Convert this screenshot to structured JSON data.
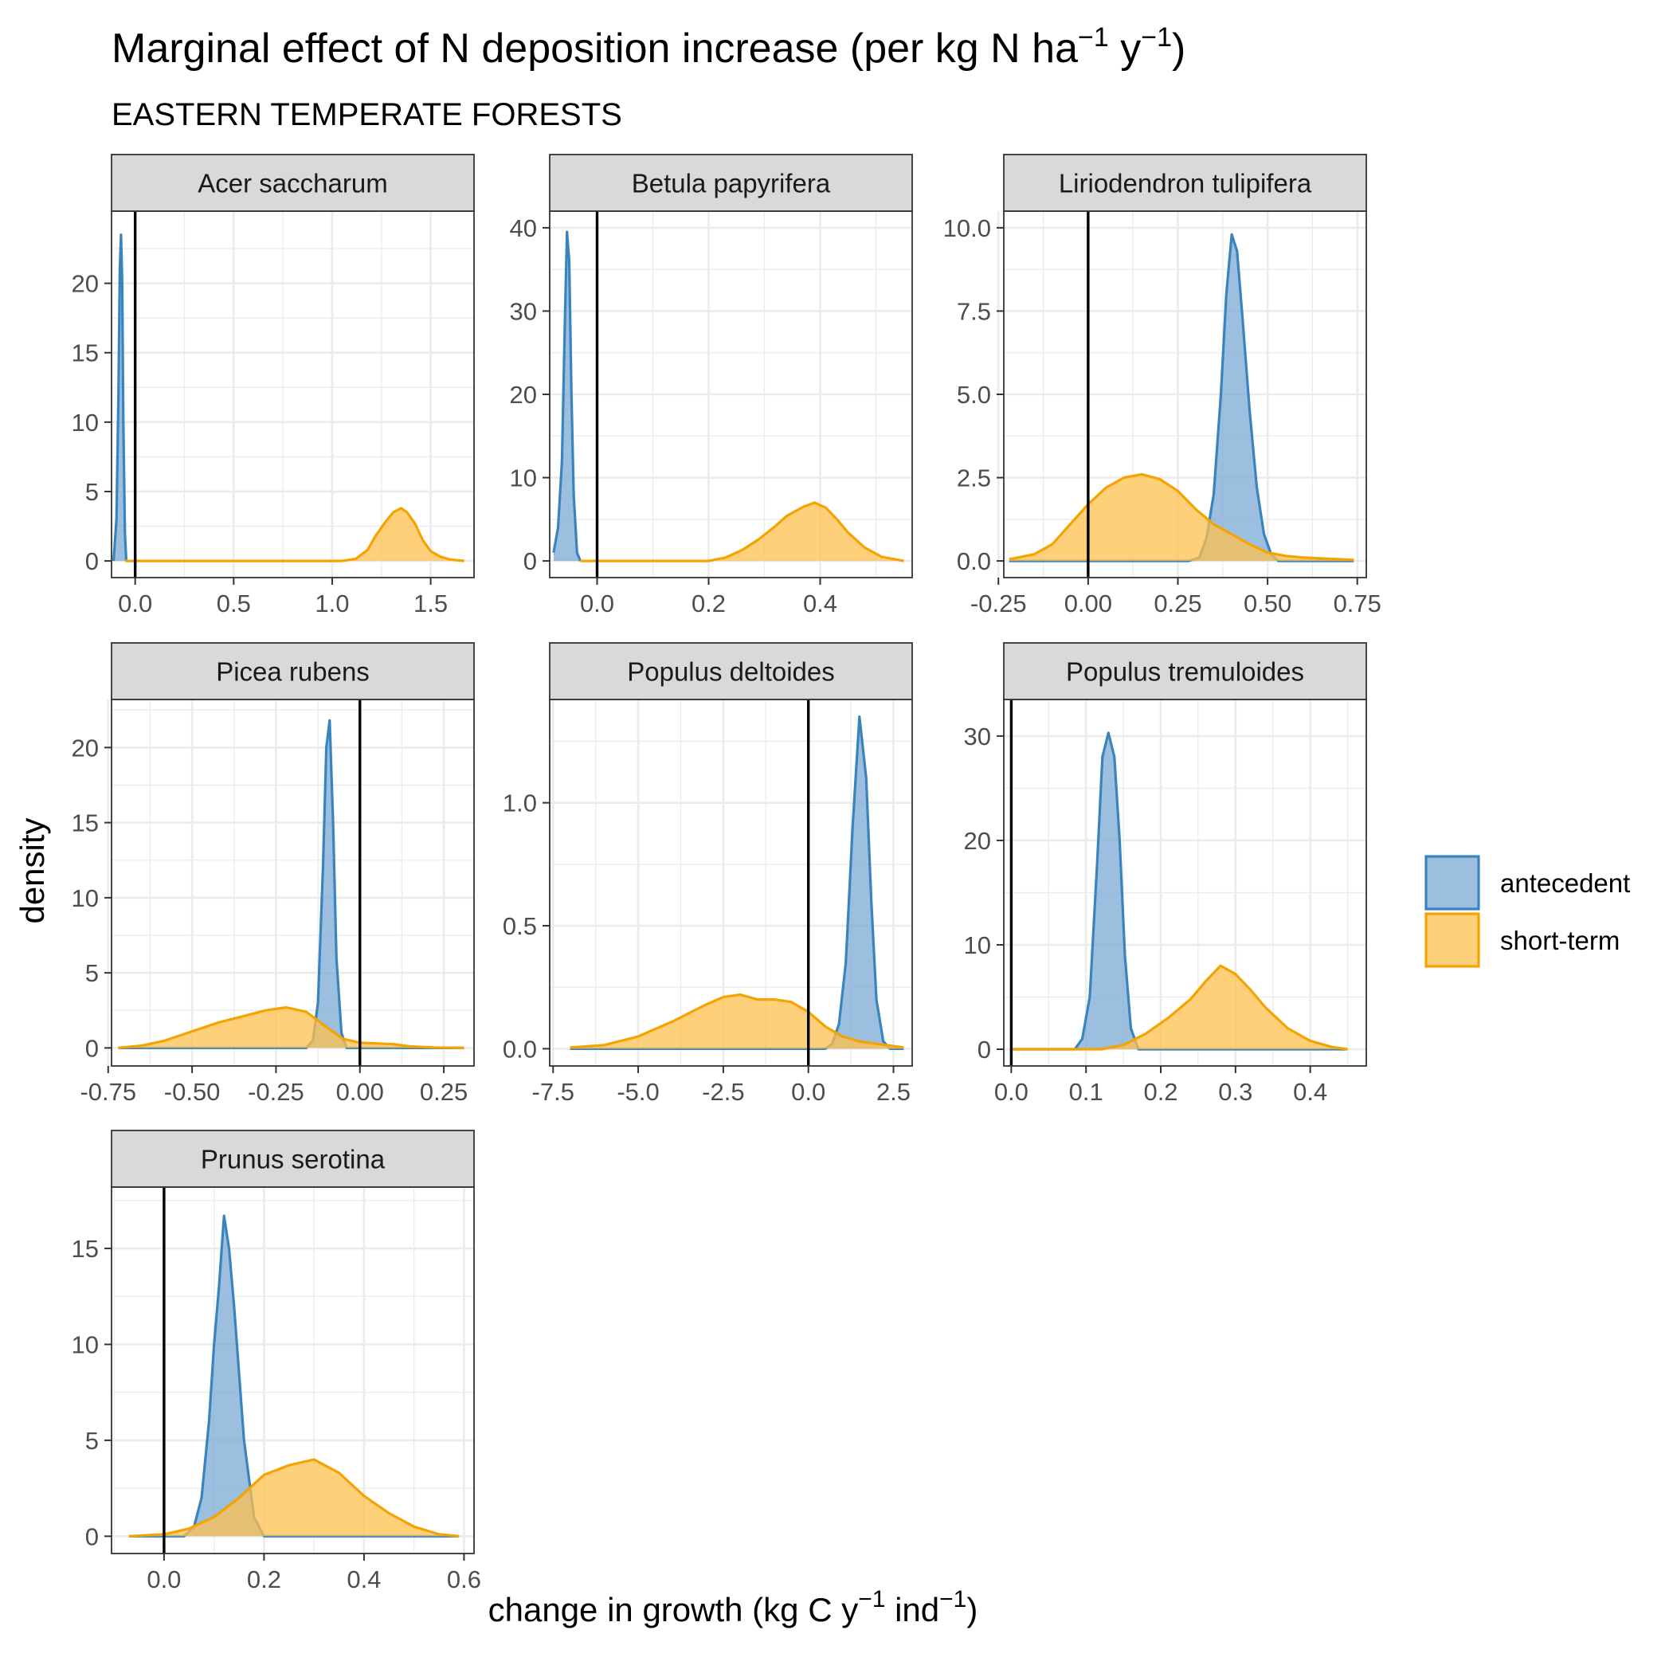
{
  "title": {
    "main": "Marginal effect of N deposition increase (per kg N ha",
    "sup1": "−1",
    "mid": " y",
    "sup2": "−1",
    "end": ")"
  },
  "subtitle": "EASTERN TEMPERATE FORESTS",
  "axis_titles": {
    "y": "density",
    "x_main": "change in growth (kg C y",
    "x_sup1": "−1",
    "x_mid": " ind",
    "x_sup2": "−1",
    "x_end": ")"
  },
  "legend": {
    "entries": [
      {
        "label": "antecedent",
        "stroke": "#3A84BE",
        "fill": "#7BAAD6"
      },
      {
        "label": "short-term",
        "stroke": "#F5A300",
        "fill": "#FFC04D"
      }
    ]
  },
  "colors": {
    "antecedent_stroke": "#3A84BE",
    "antecedent_fill": "#7BAAD6",
    "shortterm_stroke": "#F5A300",
    "shortterm_fill": "#FFC04D",
    "strip_bg": "#D9D9D9",
    "grid": "#EBEBEB",
    "panel_border": "#333333",
    "zero_line": "#000000"
  },
  "chart_data": [
    {
      "type": "area",
      "panel": "Acer saccharum",
      "xlim": [
        -0.12,
        1.72
      ],
      "ylim": [
        -1.2,
        25.2
      ],
      "xticks": [
        0.0,
        0.5,
        1.0,
        1.5
      ],
      "xtick_labels": [
        "0.0",
        "0.5",
        "1.0",
        "1.5"
      ],
      "yticks": [
        0,
        5,
        10,
        15,
        20
      ],
      "ytick_labels": [
        "0",
        "5",
        "10",
        "15",
        "20"
      ],
      "zero_line": 0,
      "series": [
        {
          "name": "antecedent",
          "x": [
            -0.11,
            -0.095,
            -0.085,
            -0.078,
            -0.072,
            -0.066,
            -0.06,
            -0.052,
            -0.045
          ],
          "y": [
            0,
            3,
            12,
            21,
            23.5,
            20,
            10,
            2,
            0
          ]
        },
        {
          "name": "short-term",
          "x": [
            -0.05,
            1.05,
            1.12,
            1.18,
            1.22,
            1.27,
            1.31,
            1.35,
            1.38,
            1.42,
            1.46,
            1.5,
            1.55,
            1.6,
            1.67
          ],
          "y": [
            0,
            0,
            0.15,
            0.8,
            1.8,
            2.8,
            3.5,
            3.8,
            3.5,
            2.7,
            1.5,
            0.7,
            0.3,
            0.1,
            0
          ]
        }
      ]
    },
    {
      "type": "area",
      "panel": "Betula papyrifera",
      "xlim": [
        -0.085,
        0.565
      ],
      "ylim": [
        -2,
        42
      ],
      "xticks": [
        0.0,
        0.2,
        0.4
      ],
      "xtick_labels": [
        "0.0",
        "0.2",
        "0.4"
      ],
      "yticks": [
        0,
        10,
        20,
        30,
        40
      ],
      "ytick_labels": [
        "0",
        "10",
        "20",
        "30",
        "40"
      ],
      "zero_line": 0,
      "series": [
        {
          "name": "antecedent",
          "x": [
            -0.078,
            -0.07,
            -0.063,
            -0.058,
            -0.054,
            -0.05,
            -0.046,
            -0.042,
            -0.036,
            -0.03
          ],
          "y": [
            1,
            4,
            12,
            28,
            39.5,
            36,
            20,
            8,
            1,
            0
          ]
        },
        {
          "name": "short-term",
          "x": [
            -0.03,
            0.2,
            0.23,
            0.26,
            0.29,
            0.32,
            0.34,
            0.37,
            0.39,
            0.41,
            0.43,
            0.45,
            0.48,
            0.51,
            0.55
          ],
          "y": [
            0,
            0,
            0.4,
            1.3,
            2.6,
            4.2,
            5.4,
            6.5,
            7.0,
            6.4,
            5.0,
            3.4,
            1.6,
            0.5,
            0
          ]
        }
      ]
    },
    {
      "type": "area",
      "panel": "Liriodendron tulipifera",
      "xlim": [
        -0.235,
        0.775
      ],
      "ylim": [
        -0.5,
        10.5
      ],
      "xticks": [
        -0.25,
        0.0,
        0.25,
        0.5,
        0.75
      ],
      "xtick_labels": [
        "-0.25",
        "0.00",
        "0.25",
        "0.50",
        "0.75"
      ],
      "yticks": [
        0,
        2.5,
        5,
        7.5,
        10
      ],
      "ytick_labels": [
        "0.0",
        "2.5",
        "5.0",
        "7.5",
        "10.0"
      ],
      "zero_line": 0,
      "series": [
        {
          "name": "antecedent",
          "x": [
            -0.22,
            0.28,
            0.31,
            0.33,
            0.35,
            0.37,
            0.385,
            0.4,
            0.415,
            0.43,
            0.45,
            0.47,
            0.49,
            0.51,
            0.53,
            0.74
          ],
          "y": [
            0,
            0,
            0.1,
            0.7,
            2.0,
            5.0,
            8.0,
            9.8,
            9.3,
            7.3,
            4.5,
            2.2,
            0.8,
            0.2,
            0,
            0
          ]
        },
        {
          "name": "short-term",
          "x": [
            -0.22,
            -0.15,
            -0.1,
            -0.05,
            0.0,
            0.05,
            0.1,
            0.15,
            0.2,
            0.25,
            0.3,
            0.35,
            0.4,
            0.45,
            0.5,
            0.55,
            0.6,
            0.7,
            0.74
          ],
          "y": [
            0.05,
            0.2,
            0.5,
            1.1,
            1.7,
            2.2,
            2.5,
            2.6,
            2.45,
            2.1,
            1.55,
            1.1,
            0.8,
            0.5,
            0.25,
            0.15,
            0.1,
            0.05,
            0.03
          ]
        }
      ]
    },
    {
      "type": "area",
      "panel": "Picea rubens",
      "xlim": [
        -0.74,
        0.34
      ],
      "ylim": [
        -1.2,
        23.2
      ],
      "xticks": [
        -0.75,
        -0.5,
        -0.25,
        0.0,
        0.25
      ],
      "xtick_labels": [
        "-0.75",
        "-0.50",
        "-0.25",
        "0.00",
        "0.25"
      ],
      "yticks": [
        0,
        5,
        10,
        15,
        20
      ],
      "ytick_labels": [
        "0",
        "5",
        "10",
        "15",
        "20"
      ],
      "zero_line": 0,
      "series": [
        {
          "name": "antecedent",
          "x": [
            -0.72,
            -0.16,
            -0.14,
            -0.125,
            -0.11,
            -0.1,
            -0.09,
            -0.08,
            -0.07,
            -0.055,
            -0.04,
            0.31
          ],
          "y": [
            0,
            0,
            0.5,
            3,
            12,
            20,
            21.8,
            15,
            6,
            1,
            0,
            0
          ]
        },
        {
          "name": "short-term",
          "x": [
            -0.72,
            -0.65,
            -0.58,
            -0.5,
            -0.42,
            -0.35,
            -0.28,
            -0.22,
            -0.16,
            -0.1,
            -0.05,
            0.0,
            0.05,
            0.1,
            0.15,
            0.22,
            0.31
          ],
          "y": [
            0,
            0.15,
            0.5,
            1.1,
            1.7,
            2.1,
            2.5,
            2.7,
            2.4,
            1.4,
            0.6,
            0.35,
            0.3,
            0.25,
            0.1,
            0.03,
            0
          ]
        }
      ]
    },
    {
      "type": "area",
      "panel": "Populus deltoides",
      "xlim": [
        -7.6,
        3.05
      ],
      "ylim": [
        -0.07,
        1.42
      ],
      "xticks": [
        -7.5,
        -5.0,
        -2.5,
        0.0,
        2.5
      ],
      "xtick_labels": [
        "-7.5",
        "-5.0",
        "-2.5",
        "0.0",
        "2.5"
      ],
      "yticks": [
        0,
        0.5,
        1.0
      ],
      "ytick_labels": [
        "0.0",
        "0.5",
        "1.0"
      ],
      "zero_line": 0,
      "series": [
        {
          "name": "antecedent",
          "x": [
            -7.0,
            0.5,
            0.7,
            0.9,
            1.1,
            1.3,
            1.5,
            1.7,
            1.85,
            2.0,
            2.2,
            2.4,
            2.8
          ],
          "y": [
            0,
            0,
            0.02,
            0.1,
            0.35,
            0.9,
            1.35,
            1.1,
            0.6,
            0.2,
            0.03,
            0,
            0
          ]
        },
        {
          "name": "short-term",
          "x": [
            -7.0,
            -6.0,
            -5.0,
            -4.0,
            -3.0,
            -2.5,
            -2.0,
            -1.5,
            -1.0,
            -0.5,
            0.0,
            0.5,
            1.0,
            1.5,
            2.0,
            2.8
          ],
          "y": [
            0.005,
            0.015,
            0.05,
            0.11,
            0.18,
            0.21,
            0.22,
            0.2,
            0.2,
            0.19,
            0.15,
            0.09,
            0.05,
            0.03,
            0.02,
            0.005
          ]
        }
      ]
    },
    {
      "type": "area",
      "panel": "Populus tremuloides",
      "xlim": [
        -0.01,
        0.475
      ],
      "ylim": [
        -1.6,
        33.5
      ],
      "xticks": [
        0.0,
        0.1,
        0.2,
        0.3,
        0.4
      ],
      "xtick_labels": [
        "0.0",
        "0.1",
        "0.2",
        "0.3",
        "0.4"
      ],
      "yticks": [
        0,
        10,
        20,
        30
      ],
      "ytick_labels": [
        "0",
        "10",
        "20",
        "30"
      ],
      "zero_line": 0,
      "series": [
        {
          "name": "antecedent",
          "x": [
            0.0,
            0.085,
            0.095,
            0.105,
            0.115,
            0.122,
            0.13,
            0.138,
            0.145,
            0.152,
            0.16,
            0.17,
            0.45
          ],
          "y": [
            0,
            0,
            1,
            5,
            18,
            28,
            30.3,
            28,
            20,
            9,
            2,
            0,
            0
          ]
        },
        {
          "name": "short-term",
          "x": [
            0.0,
            0.12,
            0.15,
            0.18,
            0.21,
            0.24,
            0.26,
            0.28,
            0.3,
            0.32,
            0.34,
            0.37,
            0.4,
            0.43,
            0.45
          ],
          "y": [
            0,
            0,
            0.4,
            1.5,
            3.0,
            4.8,
            6.5,
            8.0,
            7.2,
            5.7,
            4.0,
            2.0,
            0.8,
            0.2,
            0
          ]
        }
      ]
    },
    {
      "type": "area",
      "panel": "Prunus serotina",
      "xlim": [
        -0.105,
        0.62
      ],
      "ylim": [
        -0.9,
        18.2
      ],
      "xticks": [
        0.0,
        0.2,
        0.4,
        0.6
      ],
      "xtick_labels": [
        "0.0",
        "0.2",
        "0.4",
        "0.6"
      ],
      "yticks": [
        0,
        5,
        10,
        15
      ],
      "ytick_labels": [
        "0",
        "5",
        "10",
        "15"
      ],
      "zero_line": 0,
      "series": [
        {
          "name": "antecedent",
          "x": [
            -0.07,
            0.04,
            0.06,
            0.075,
            0.09,
            0.1,
            0.11,
            0.12,
            0.13,
            0.14,
            0.16,
            0.18,
            0.2,
            0.59
          ],
          "y": [
            0,
            0,
            0.5,
            2,
            6,
            10,
            13,
            16.7,
            15,
            12,
            5,
            1,
            0,
            0
          ]
        },
        {
          "name": "short-term",
          "x": [
            -0.07,
            0.0,
            0.05,
            0.1,
            0.15,
            0.2,
            0.25,
            0.3,
            0.35,
            0.4,
            0.45,
            0.5,
            0.55,
            0.59
          ],
          "y": [
            0,
            0.1,
            0.4,
            1.0,
            2.0,
            3.2,
            3.7,
            4.0,
            3.3,
            2.1,
            1.2,
            0.5,
            0.1,
            0
          ]
        }
      ]
    }
  ]
}
